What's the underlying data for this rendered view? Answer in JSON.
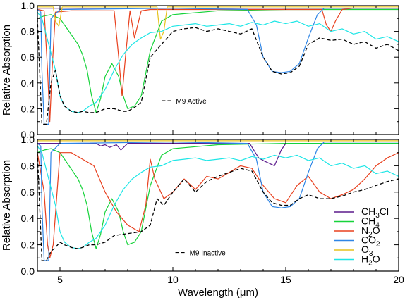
{
  "chart_data": [
    {
      "type": "line",
      "panel": "top",
      "ylabel": "Relative Absorption",
      "xlim": [
        4,
        20
      ],
      "ylim": [
        0,
        1
      ],
      "x_ticks": [
        5,
        10,
        15,
        20
      ],
      "y_ticks": [
        "0.0",
        "0.2",
        "0.4",
        "0.6",
        "0.8",
        "1.0"
      ],
      "annotation": {
        "label": "M9 Active",
        "x": 10.7,
        "y": 0.24
      },
      "series": [
        {
          "id": "CH3Cl",
          "color": "#5b1a8c",
          "dashed": false,
          "x": [
            4,
            20
          ],
          "y": [
            0.98,
            0.98
          ]
        },
        {
          "id": "CH4",
          "color": "#16d33a",
          "dashed": false,
          "x": [
            4,
            4.3,
            4.6,
            5,
            5.4,
            5.8,
            6.0,
            6.2,
            6.4,
            6.6,
            6.8,
            7.0,
            7.3,
            7.6,
            7.8,
            8.0,
            8.3,
            8.6,
            9.0,
            9.5,
            10,
            12,
            15,
            20
          ],
          "y": [
            0.9,
            0.92,
            0.93,
            0.9,
            0.8,
            0.7,
            0.62,
            0.5,
            0.3,
            0.17,
            0.28,
            0.45,
            0.55,
            0.45,
            0.3,
            0.2,
            0.22,
            0.3,
            0.65,
            0.88,
            0.93,
            0.96,
            0.97,
            0.97
          ]
        },
        {
          "id": "N2O",
          "color": "#e8401e",
          "dashed": false,
          "x": [
            4,
            4.3,
            4.45,
            4.55,
            4.65,
            4.8,
            5.5,
            7.4,
            7.6,
            7.75,
            7.9,
            8.1,
            8.3,
            8.6,
            9,
            12,
            15,
            16.6,
            16.8,
            17.0,
            17.2,
            17.5,
            18,
            20
          ],
          "y": [
            0.97,
            0.96,
            0.5,
            0.1,
            0.5,
            0.95,
            0.96,
            0.96,
            0.6,
            0.3,
            0.6,
            0.96,
            0.75,
            0.96,
            0.97,
            0.97,
            0.97,
            0.97,
            0.85,
            0.8,
            0.88,
            0.97,
            0.98,
            0.98
          ]
        },
        {
          "id": "CO2",
          "color": "#2e85e6",
          "dashed": false,
          "x": [
            4,
            4.15,
            4.2,
            4.3,
            4.5,
            4.6,
            5,
            10,
            13.3,
            13.7,
            14.0,
            14.4,
            14.8,
            15.2,
            15.6,
            16.0,
            16.4,
            16.7,
            17,
            20
          ],
          "y": [
            0.97,
            0.95,
            0.5,
            0.08,
            0.08,
            0.9,
            0.97,
            0.98,
            0.97,
            0.85,
            0.6,
            0.49,
            0.48,
            0.49,
            0.55,
            0.75,
            0.93,
            0.98,
            0.98,
            0.98
          ]
        },
        {
          "id": "O3",
          "color": "#e6c21e",
          "dashed": false,
          "x": [
            4,
            4.7,
            4.8,
            4.95,
            5.1,
            9.3,
            9.45,
            9.6,
            9.75,
            10,
            20
          ],
          "y": [
            0.99,
            0.99,
            0.88,
            0.84,
            0.99,
            0.99,
            0.74,
            0.8,
            0.99,
            0.99,
            0.99
          ]
        },
        {
          "id": "H2O",
          "color": "#1ee6e6",
          "dashed": false,
          "x": [
            4,
            4.2,
            4.5,
            4.8,
            5,
            5.2,
            5.5,
            5.8,
            6,
            6.3,
            6.6,
            7,
            7.4,
            7.8,
            8.2,
            8.6,
            9,
            9.5,
            10,
            10.5,
            11,
            11.5,
            12,
            12.5,
            13,
            13.5,
            14,
            14.5,
            15,
            15.5,
            16,
            16.5,
            17,
            17.5,
            18,
            18.5,
            19,
            19.5,
            20
          ],
          "y": [
            0.95,
            0.9,
            0.7,
            0.5,
            0.3,
            0.22,
            0.18,
            0.17,
            0.18,
            0.22,
            0.25,
            0.35,
            0.5,
            0.62,
            0.7,
            0.75,
            0.79,
            0.8,
            0.84,
            0.85,
            0.86,
            0.84,
            0.85,
            0.86,
            0.84,
            0.87,
            0.85,
            0.88,
            0.86,
            0.88,
            0.84,
            0.86,
            0.8,
            0.82,
            0.78,
            0.8,
            0.74,
            0.76,
            0.72
          ]
        },
        {
          "id": "total",
          "color": "#000000",
          "dashed": true,
          "x": [
            4,
            4.2,
            4.4,
            4.6,
            4.8,
            5,
            5.2,
            5.5,
            5.8,
            6,
            6.3,
            6.6,
            7,
            7.4,
            7.8,
            8,
            8.3,
            8.6,
            9,
            9.5,
            10,
            10.5,
            11,
            11.5,
            12,
            12.5,
            13,
            13.5,
            14,
            14.4,
            14.8,
            15.2,
            15.6,
            16,
            16.5,
            17,
            17.5,
            18,
            18.5,
            19,
            19.5,
            20
          ],
          "y": [
            0.9,
            0.08,
            0.08,
            0.4,
            0.5,
            0.3,
            0.22,
            0.18,
            0.17,
            0.18,
            0.17,
            0.17,
            0.2,
            0.2,
            0.18,
            0.18,
            0.21,
            0.25,
            0.6,
            0.7,
            0.8,
            0.82,
            0.83,
            0.8,
            0.82,
            0.8,
            0.78,
            0.82,
            0.6,
            0.49,
            0.47,
            0.48,
            0.53,
            0.7,
            0.75,
            0.73,
            0.74,
            0.7,
            0.72,
            0.67,
            0.7,
            0.65
          ]
        }
      ]
    },
    {
      "type": "line",
      "panel": "bottom",
      "ylabel": "Relative Absorption",
      "xlabel": "Wavelength (μm)",
      "xlim": [
        4,
        20
      ],
      "ylim": [
        0,
        1
      ],
      "x_ticks": [
        5,
        10,
        15,
        20
      ],
      "y_ticks": [
        "0.0",
        "0.2",
        "0.4",
        "0.6",
        "0.8",
        "1.0"
      ],
      "annotation": {
        "label": "M9 Inactive",
        "x": 11.3,
        "y": 0.12
      },
      "series": [
        {
          "id": "CH3Cl",
          "color": "#5b1a8c",
          "dashed": false,
          "x": [
            4,
            6.6,
            6.8,
            7.0,
            7.2,
            7.5,
            7.7,
            8.0,
            13.4,
            13.8,
            14.0,
            14.5,
            14.8,
            15.0,
            20
          ],
          "y": [
            0.97,
            0.97,
            0.95,
            0.96,
            0.94,
            0.96,
            0.92,
            0.97,
            0.97,
            0.86,
            0.84,
            0.8,
            0.92,
            0.97,
            0.97
          ]
        },
        {
          "id": "CH4",
          "color": "#16d33a",
          "dashed": false,
          "x": [
            4,
            4.3,
            4.6,
            5,
            5.4,
            5.8,
            6.0,
            6.2,
            6.4,
            6.6,
            6.8,
            7.0,
            7.3,
            7.6,
            7.8,
            8.0,
            8.3,
            8.6,
            9.0,
            9.5,
            10,
            12,
            15,
            20
          ],
          "y": [
            0.9,
            0.92,
            0.93,
            0.9,
            0.8,
            0.7,
            0.62,
            0.5,
            0.3,
            0.17,
            0.28,
            0.45,
            0.55,
            0.45,
            0.3,
            0.2,
            0.22,
            0.3,
            0.65,
            0.88,
            0.93,
            0.96,
            0.97,
            0.97
          ]
        },
        {
          "id": "N2O",
          "color": "#e8401e",
          "dashed": false,
          "x": [
            4,
            4.3,
            4.45,
            4.55,
            4.7,
            5,
            5.5,
            6,
            6.5,
            7,
            7.5,
            8,
            8.5,
            8.8,
            9.0,
            9.2,
            9.6,
            10,
            10.5,
            11,
            11.5,
            12,
            12.5,
            13,
            13.5,
            14,
            14.5,
            15,
            15.5,
            16,
            16.5,
            17,
            17.5,
            18,
            18.5,
            19,
            19.5,
            20
          ],
          "y": [
            0.9,
            0.6,
            0.2,
            0.1,
            0.2,
            0.9,
            0.9,
            0.85,
            0.8,
            0.6,
            0.45,
            0.35,
            0.3,
            0.5,
            0.85,
            0.7,
            0.55,
            0.6,
            0.7,
            0.62,
            0.72,
            0.7,
            0.75,
            0.8,
            0.78,
            0.65,
            0.55,
            0.52,
            0.65,
            0.72,
            0.6,
            0.55,
            0.58,
            0.62,
            0.7,
            0.8,
            0.86,
            0.9
          ]
        },
        {
          "id": "CO2",
          "color": "#2e85e6",
          "dashed": false,
          "x": [
            4,
            4.15,
            4.2,
            4.3,
            4.5,
            4.6,
            5,
            10,
            13.3,
            13.7,
            14.0,
            14.4,
            14.8,
            15.2,
            15.6,
            16.0,
            16.4,
            16.7,
            17,
            20
          ],
          "y": [
            0.97,
            0.95,
            0.5,
            0.08,
            0.08,
            0.9,
            0.97,
            0.98,
            0.97,
            0.85,
            0.6,
            0.49,
            0.48,
            0.49,
            0.55,
            0.75,
            0.93,
            0.98,
            0.98,
            0.98
          ]
        },
        {
          "id": "O3",
          "color": "#e6c21e",
          "dashed": false,
          "x": [
            4,
            20
          ],
          "y": [
            0.99,
            0.99
          ]
        },
        {
          "id": "H2O",
          "color": "#1ee6e6",
          "dashed": false,
          "x": [
            4,
            4.2,
            4.5,
            4.8,
            5,
            5.2,
            5.5,
            5.8,
            6,
            6.3,
            6.6,
            7,
            7.4,
            7.8,
            8.2,
            8.6,
            9,
            9.5,
            10,
            10.5,
            11,
            11.5,
            12,
            12.5,
            13,
            13.5,
            14,
            14.5,
            15,
            15.5,
            16,
            16.5,
            17,
            17.5,
            18,
            18.5,
            19,
            19.5,
            20
          ],
          "y": [
            0.95,
            0.9,
            0.7,
            0.5,
            0.3,
            0.22,
            0.18,
            0.17,
            0.18,
            0.22,
            0.25,
            0.35,
            0.5,
            0.62,
            0.7,
            0.75,
            0.79,
            0.8,
            0.84,
            0.85,
            0.86,
            0.84,
            0.85,
            0.86,
            0.84,
            0.87,
            0.85,
            0.88,
            0.86,
            0.88,
            0.84,
            0.86,
            0.8,
            0.82,
            0.78,
            0.8,
            0.74,
            0.76,
            0.72
          ]
        },
        {
          "id": "total",
          "color": "#000000",
          "dashed": true,
          "x": [
            4,
            4.2,
            4.4,
            4.6,
            4.8,
            5,
            5.2,
            5.5,
            5.8,
            6,
            6.3,
            6.6,
            7,
            7.4,
            7.8,
            8.2,
            8.6,
            9.0,
            9.3,
            9.6,
            10,
            10.5,
            11,
            11.5,
            12,
            12.5,
            13,
            13.5,
            14,
            14.4,
            14.8,
            15.2,
            15.6,
            16,
            16.5,
            17,
            17.5,
            18,
            18.5,
            19,
            19.5,
            20
          ],
          "y": [
            0.9,
            0.08,
            0.08,
            0.15,
            0.18,
            0.22,
            0.2,
            0.18,
            0.17,
            0.18,
            0.2,
            0.2,
            0.22,
            0.27,
            0.28,
            0.29,
            0.3,
            0.35,
            0.55,
            0.5,
            0.6,
            0.7,
            0.6,
            0.68,
            0.72,
            0.75,
            0.78,
            0.76,
            0.6,
            0.52,
            0.5,
            0.5,
            0.55,
            0.58,
            0.55,
            0.55,
            0.57,
            0.6,
            0.62,
            0.65,
            0.68,
            0.7
          ]
        }
      ]
    }
  ],
  "legend": {
    "placement": "lower-right of bottom panel",
    "items": [
      {
        "id": "CH3Cl",
        "main": "CH",
        "sub": "3",
        "tail": "Cl",
        "color": "#5b1a8c"
      },
      {
        "id": "CH4",
        "main": "CH",
        "sub": "4",
        "tail": "",
        "color": "#16d33a"
      },
      {
        "id": "N2O",
        "main": "N",
        "sub": "2",
        "tail": "O",
        "color": "#e8401e"
      },
      {
        "id": "CO2",
        "main": "CO",
        "sub": "2",
        "tail": "",
        "color": "#2e85e6"
      },
      {
        "id": "O3",
        "main": "O",
        "sub": "3",
        "tail": "",
        "color": "#e6c21e"
      },
      {
        "id": "H2O",
        "main": "H",
        "sub": "2",
        "tail": "O",
        "color": "#1ee6e6"
      }
    ]
  }
}
